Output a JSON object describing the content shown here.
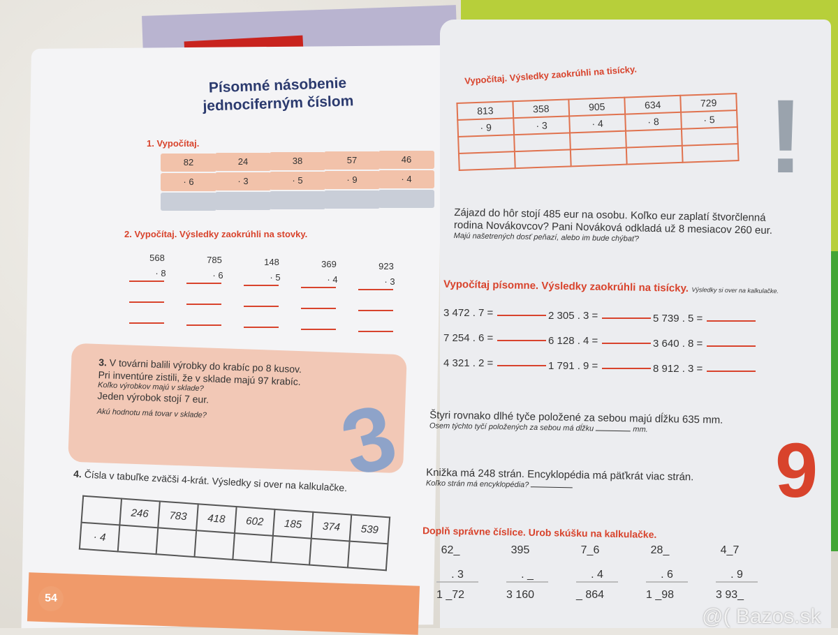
{
  "watermark": "@( Bazos.sk",
  "left_page": {
    "title_line1": "Písomné násobenie",
    "title_line2": "jednociferným číslom",
    "page_number": "54",
    "ex1": {
      "label": "1. Vypočítaj.",
      "numbers": [
        "82",
        "24",
        "38",
        "57",
        "46"
      ],
      "multipliers": [
        "· 6",
        "· 3",
        "· 5",
        "· 9",
        "· 4"
      ]
    },
    "ex2": {
      "label": "2. Vypočítaj. Výsledky zaokrúhli na stovky.",
      "numbers": [
        "568",
        "785",
        "148",
        "369",
        "923"
      ],
      "multipliers": [
        "· 8",
        "· 6",
        "· 5",
        "· 4",
        "· 3"
      ]
    },
    "ex3": {
      "label": "3.",
      "line1": "V továrni balili výrobky do krabíc po 8 kusov.",
      "line2": "Pri inventúre zistili, že v sklade majú 97 krabíc.",
      "q1": "Koľko výrobkov majú v sklade?",
      "line3": "Jeden výrobok stojí 7 eur.",
      "q2": "Akú hodnotu má tovar v sklade?"
    },
    "ex4": {
      "label": "4.",
      "text": "Čísla v tabuľke zväčši 4-krát. Výsledky si over na kalkulačke.",
      "row_label": "· 4",
      "numbers": [
        "246",
        "783",
        "418",
        "602",
        "185",
        "374",
        "539"
      ]
    }
  },
  "right_page": {
    "ex1": {
      "label": "Vypočítaj. Výsledky zaokrúhli na tisícky.",
      "numbers": [
        "813",
        "358",
        "905",
        "634",
        "729"
      ],
      "multipliers": [
        "· 9",
        "· 3",
        "· 4",
        "· 8",
        "· 5"
      ]
    },
    "ex2": {
      "line1": "Zájazd do hôr stojí 485 eur na osobu. Koľko eur zaplatí štvorčlenná",
      "line2": "rodina Novákovcov? Pani Nováková odkladá už 8 mesiacov 260 eur.",
      "q": "Majú našetrených dosť peňazí, alebo im bude chýbať?"
    },
    "ex3": {
      "label": "Vypočítaj písomne. Výsledky zaokrúhli na tisícky.",
      "note": "Výsledky si over na kalkulačke.",
      "equations": [
        "3 472 . 7 =",
        "2 305 . 3 =",
        "5 739 . 5 =",
        "7 254 . 6 =",
        "6 128 . 4 =",
        "3 640 . 8 =",
        "4 321 . 2 =",
        "1 791 . 9 =",
        "8 912 . 3 ="
      ]
    },
    "ex4": {
      "line1": "Štyri rovnako dlhé tyče položené za sebou majú dĺžku 635 mm.",
      "q": "Osem týchto tyčí položených za sebou má dĺžku",
      "unit": "mm."
    },
    "ex5": {
      "line1": "Knižka má 248 strán. Encyklopédia má päťkrát viac strán.",
      "q": "Koľko strán má encyklopédia?"
    },
    "ex6": {
      "label": "Doplň správne číslice. Urob skúšku na kalkulačke.",
      "tops": [
        "62_",
        "395",
        "7_6",
        "28_",
        "4_7"
      ],
      "multipliers": [
        ". 3",
        ". _",
        ". 4",
        ". 6",
        ". 9"
      ],
      "results": [
        "1 _72",
        "3 160",
        "_ 864",
        "1 _98",
        "3 93_"
      ]
    }
  }
}
